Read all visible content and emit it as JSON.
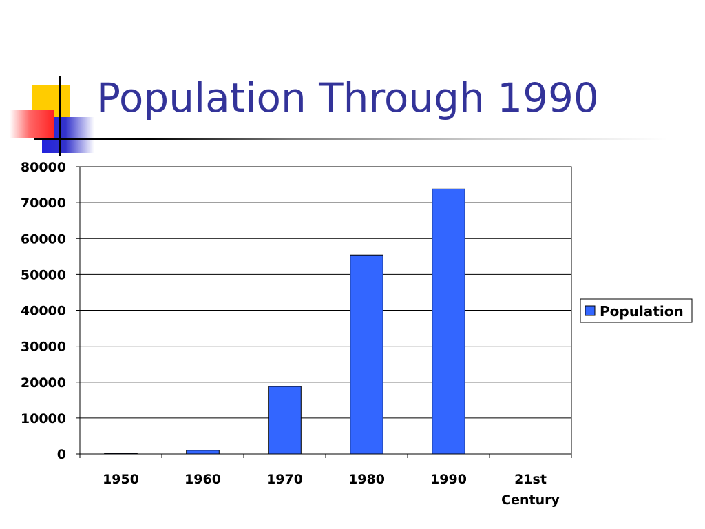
{
  "slide": {
    "title": "Population Through 1990"
  },
  "colors": {
    "title": "#333399",
    "bar": "#3366ff",
    "bar_stroke": "#000000",
    "deco_yellow": "#ffcc00",
    "deco_blue": "#3333cc",
    "deco_red": "#ff3333"
  },
  "chart_data": {
    "type": "bar",
    "categories": [
      "1950",
      "1960",
      "1970",
      "1980",
      "1990",
      "21st Century"
    ],
    "series": [
      {
        "name": "Population",
        "values": [
          200,
          1000,
          18800,
          55400,
          73800,
          0
        ]
      }
    ],
    "yticks": [
      0,
      10000,
      20000,
      30000,
      40000,
      50000,
      60000,
      70000,
      80000
    ],
    "ylim": [
      0,
      80000
    ],
    "xlabel": "",
    "ylabel": "",
    "grid": true,
    "legend": "right"
  }
}
